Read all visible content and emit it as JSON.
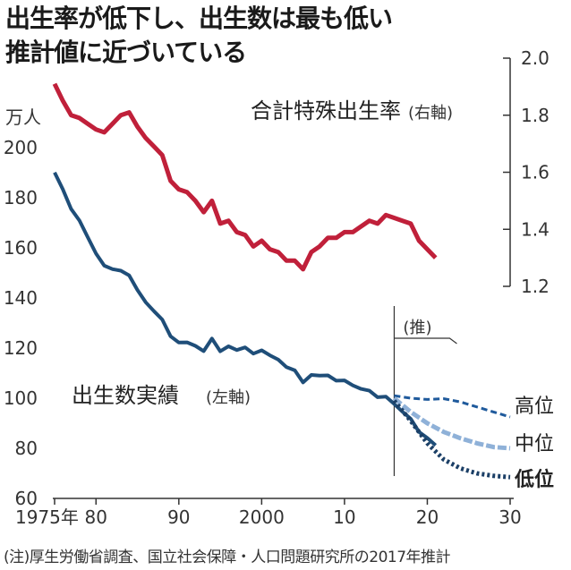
{
  "headline": {
    "line1": "出生率が低下し、出生数は最も低い",
    "line2": "推計値に近づいている"
  },
  "footnote": "(注)厚生労働省調査、国立社会保障・人口問題研究所の2017年推計",
  "colors": {
    "births": "#1f4e79",
    "tfr": "#c0203a",
    "proj_high": "#1f5a9c",
    "proj_mid": "#8fb1d8",
    "proj_low": "#1b3f66"
  },
  "chart_data": {
    "type": "line",
    "x_tick_labels": [
      "1975年",
      "80",
      "90",
      "2000",
      "10",
      "20",
      "30"
    ],
    "xlim": [
      1975,
      2030
    ],
    "left_axis": {
      "unit": "万人",
      "ylim": [
        60,
        200
      ],
      "ticks": [
        "60",
        "80",
        "100",
        "120",
        "140",
        "160",
        "180",
        "200"
      ]
    },
    "right_axis": {
      "ylim": [
        1.2,
        2.0
      ],
      "ticks": [
        "1.2",
        "1.4",
        "1.6",
        "1.8",
        "2.0"
      ]
    },
    "projection_marker": {
      "x": 2016,
      "label": "(推)"
    },
    "series": [
      {
        "name": "合計特殊出生率",
        "axis_note": "(右軸)",
        "axis": "right",
        "x": [
          1975,
          1976,
          1977,
          1978,
          1979,
          1980,
          1981,
          1982,
          1983,
          1984,
          1985,
          1986,
          1987,
          1988,
          1989,
          1990,
          1991,
          1992,
          1993,
          1994,
          1995,
          1996,
          1997,
          1998,
          1999,
          2000,
          2001,
          2002,
          2003,
          2004,
          2005,
          2006,
          2007,
          2008,
          2009,
          2010,
          2011,
          2012,
          2013,
          2014,
          2015,
          2016,
          2017,
          2018,
          2019,
          2020,
          2021
        ],
        "values": [
          1.91,
          1.85,
          1.8,
          1.79,
          1.77,
          1.75,
          1.74,
          1.77,
          1.8,
          1.81,
          1.76,
          1.72,
          1.69,
          1.66,
          1.57,
          1.54,
          1.53,
          1.5,
          1.46,
          1.5,
          1.42,
          1.43,
          1.39,
          1.38,
          1.34,
          1.36,
          1.33,
          1.32,
          1.29,
          1.29,
          1.26,
          1.32,
          1.34,
          1.37,
          1.37,
          1.39,
          1.39,
          1.41,
          1.43,
          1.42,
          1.45,
          1.44,
          1.43,
          1.42,
          1.36,
          1.33,
          1.3
        ]
      },
      {
        "name": "出生数実績",
        "axis_note": "(左軸)",
        "axis": "left",
        "x": [
          1975,
          1976,
          1977,
          1978,
          1979,
          1980,
          1981,
          1982,
          1983,
          1984,
          1985,
          1986,
          1987,
          1988,
          1989,
          1990,
          1991,
          1992,
          1993,
          1994,
          1995,
          1996,
          1997,
          1998,
          1999,
          2000,
          2001,
          2002,
          2003,
          2004,
          2005,
          2006,
          2007,
          2008,
          2009,
          2010,
          2011,
          2012,
          2013,
          2014,
          2015,
          2016,
          2017,
          2018,
          2019,
          2020,
          2021
        ],
        "values": [
          190.1,
          183.3,
          175.5,
          170.9,
          164.3,
          157.7,
          152.9,
          151.5,
          150.9,
          149.0,
          143.2,
          138.3,
          134.7,
          131.4,
          124.7,
          122.2,
          122.3,
          120.9,
          118.8,
          123.8,
          118.7,
          120.7,
          119.2,
          120.3,
          117.8,
          119.1,
          117.1,
          115.4,
          112.4,
          111.1,
          106.3,
          109.3,
          109.0,
          109.1,
          107.0,
          107.1,
          105.1,
          103.7,
          103.0,
          100.4,
          100.6,
          97.7,
          94.6,
          91.8,
          86.5,
          84.1,
          81.2
        ]
      },
      {
        "name": "高位",
        "axis": "left",
        "style": "projection",
        "x": [
          2016,
          2018,
          2020,
          2022,
          2024,
          2026,
          2028,
          2030
        ],
        "values": [
          101.0,
          100.0,
          99.5,
          99.8,
          98.5,
          96.5,
          94.5,
          92.5
        ]
      },
      {
        "name": "中位",
        "axis": "left",
        "style": "projection",
        "x": [
          2016,
          2018,
          2020,
          2022,
          2024,
          2026,
          2028,
          2030
        ],
        "values": [
          100.0,
          94.5,
          90.0,
          86.5,
          84.0,
          82.0,
          80.5,
          80.0
        ]
      },
      {
        "name": "低位",
        "axis": "left",
        "style": "projection",
        "x": [
          2016,
          2018,
          2020,
          2022,
          2024,
          2026,
          2028,
          2030
        ],
        "values": [
          99.0,
          91.0,
          82.0,
          75.5,
          72.0,
          70.0,
          69.0,
          68.5
        ]
      }
    ]
  }
}
